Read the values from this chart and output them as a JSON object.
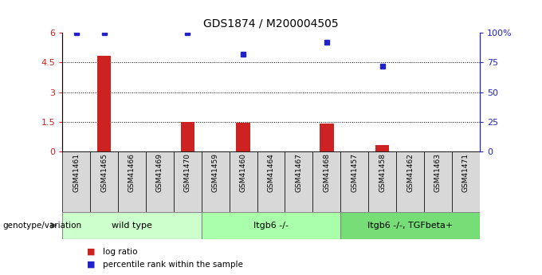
{
  "title": "GDS1874 / M200004505",
  "samples": [
    "GSM41461",
    "GSM41465",
    "GSM41466",
    "GSM41469",
    "GSM41470",
    "GSM41459",
    "GSM41460",
    "GSM41464",
    "GSM41467",
    "GSM41468",
    "GSM41457",
    "GSM41458",
    "GSM41462",
    "GSM41463",
    "GSM41471"
  ],
  "log_ratio": [
    0.0,
    4.85,
    0.0,
    0.0,
    1.5,
    0.0,
    1.45,
    0.0,
    0.0,
    1.4,
    0.0,
    0.3,
    0.0,
    0.0,
    0.0
  ],
  "percentile_rank": [
    100,
    100,
    null,
    null,
    100,
    null,
    82,
    null,
    null,
    92,
    null,
    72,
    null,
    null,
    null
  ],
  "groups": [
    {
      "label": "wild type",
      "start": 0,
      "end": 5,
      "color": "#ccffcc"
    },
    {
      "label": "Itgb6 -/-",
      "start": 5,
      "end": 10,
      "color": "#aaffaa"
    },
    {
      "label": "Itgb6 -/-, TGFbeta+",
      "start": 10,
      "end": 15,
      "color": "#77dd77"
    }
  ],
  "ylim_left": [
    0,
    6
  ],
  "ylim_right": [
    0,
    100
  ],
  "yticks_left": [
    0,
    1.5,
    3.0,
    4.5,
    6.0
  ],
  "yticks_right": [
    0,
    25,
    50,
    75,
    100
  ],
  "bar_color": "#cc2222",
  "dot_color": "#2222cc",
  "tick_bg_color": "#d8d8d8",
  "legend_bar_label": "log ratio",
  "legend_dot_label": "percentile rank within the sample",
  "genotype_label": "genotype/variation"
}
